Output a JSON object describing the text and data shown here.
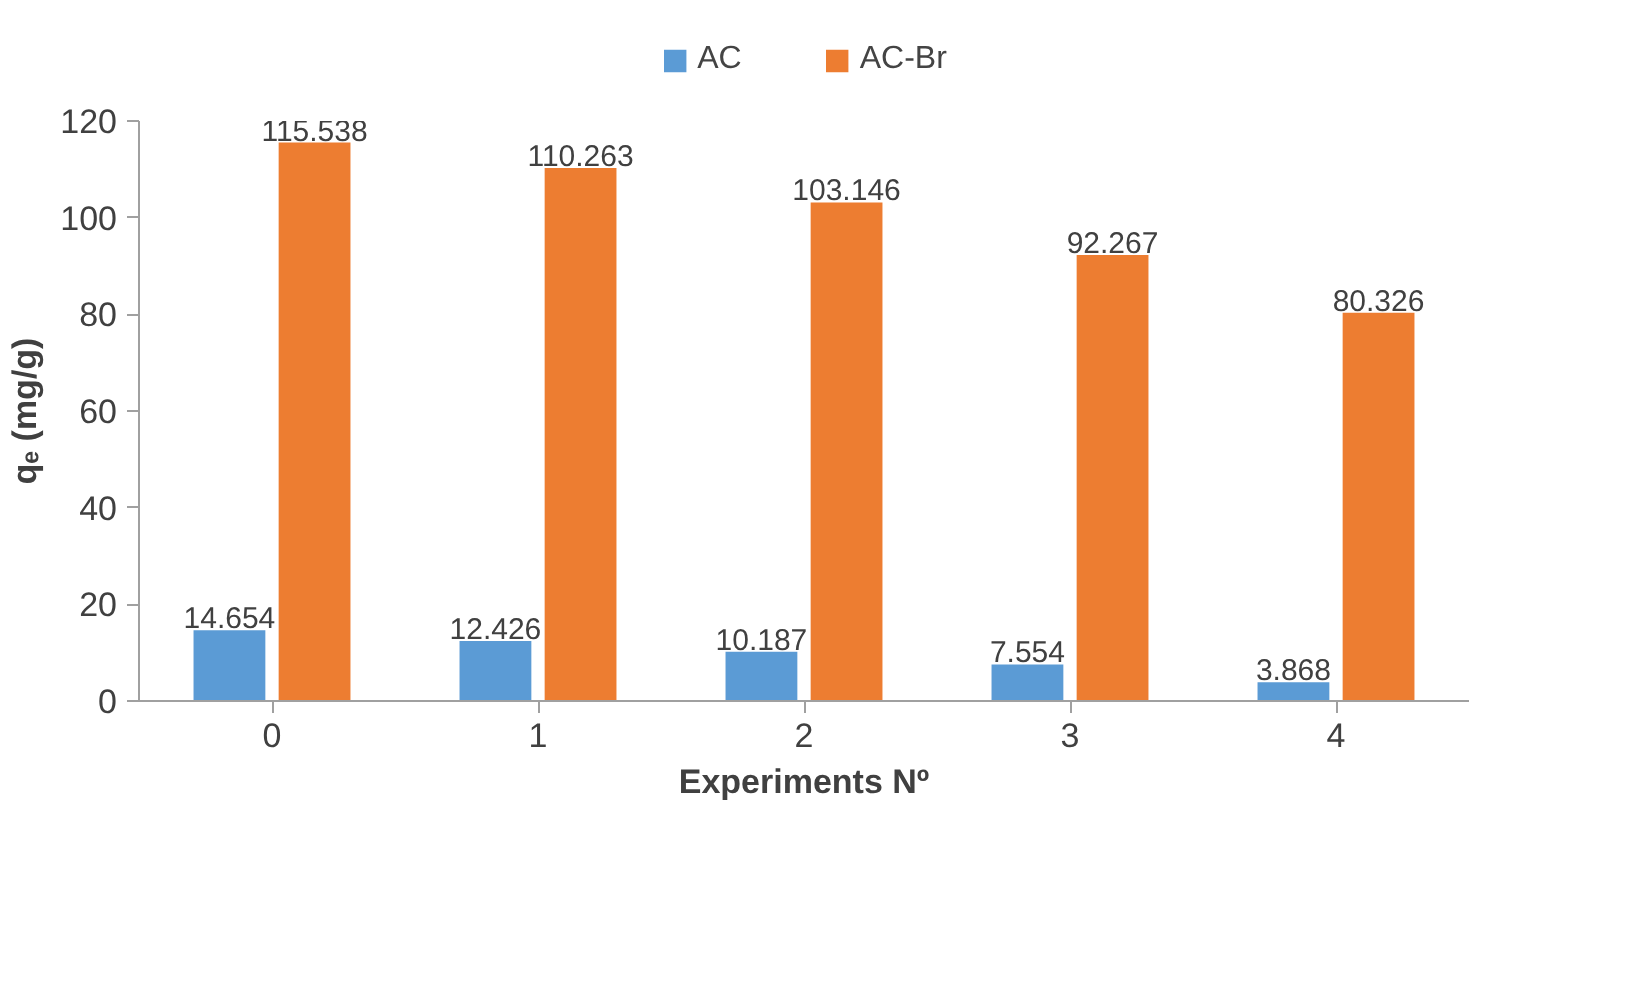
{
  "chart_data": {
    "type": "bar",
    "xlabel": "Experiments Nº",
    "ylabel": "qₑ (mg/g)",
    "categories": [
      "0",
      "1",
      "2",
      "3",
      "4"
    ],
    "series": [
      {
        "name": "AC",
        "color": "#5b9bd5",
        "values": [
          14.654,
          12.426,
          10.187,
          7.554,
          3.868
        ]
      },
      {
        "name": "AC-Br",
        "color": "#ed7d31",
        "values": [
          115.538,
          110.263,
          103.146,
          92.267,
          80.326
        ]
      }
    ],
    "ylim": [
      0,
      120
    ],
    "yticks": [
      0,
      20,
      40,
      60,
      80,
      100,
      120
    ],
    "grid": false,
    "legend": "top",
    "data_labels": true
  }
}
